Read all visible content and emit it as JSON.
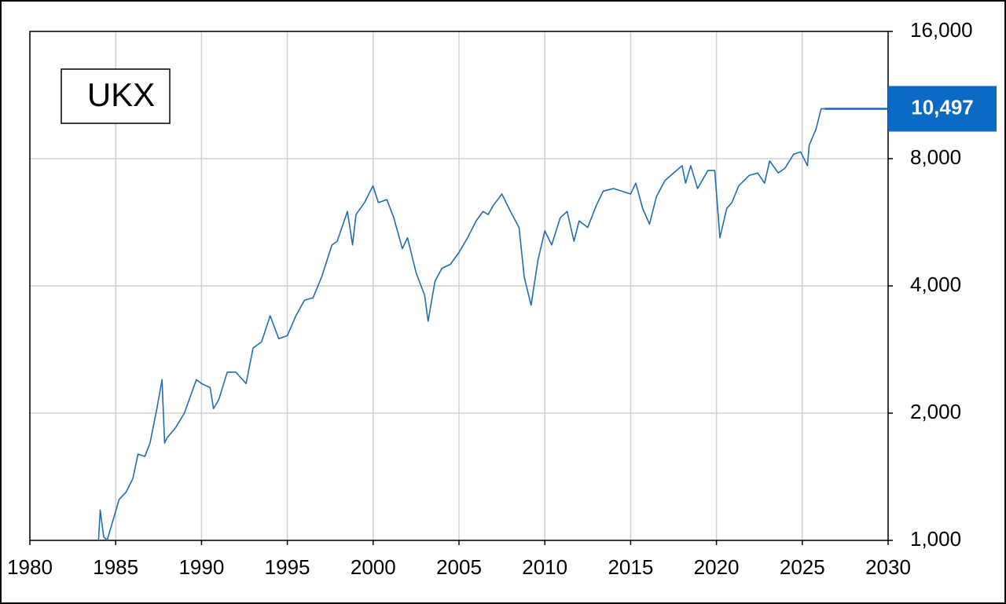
{
  "chart_data": {
    "type": "line",
    "x": [
      1984.0,
      1984.1,
      1984.3,
      1984.5,
      1984.8,
      1985.2,
      1985.6,
      1986.0,
      1986.3,
      1986.7,
      1987.0,
      1987.4,
      1987.7,
      1987.85,
      1988.0,
      1988.5,
      1989.0,
      1989.7,
      1990.0,
      1990.5,
      1990.7,
      1991.0,
      1991.5,
      1992.0,
      1992.6,
      1993.0,
      1993.5,
      1994.0,
      1994.5,
      1995.0,
      1995.5,
      1996.0,
      1996.5,
      1997.0,
      1997.6,
      1997.9,
      1998.5,
      1998.8,
      1999.0,
      1999.5,
      1999.99,
      2000.3,
      2000.8,
      2001.2,
      2001.7,
      2002.0,
      2002.5,
      2003.0,
      2003.2,
      2003.6,
      2004.0,
      2004.5,
      2005.0,
      2005.5,
      2006.0,
      2006.4,
      2006.7,
      2007.0,
      2007.5,
      2008.0,
      2008.5,
      2008.8,
      2009.2,
      2009.6,
      2010.0,
      2010.4,
      2010.9,
      2011.3,
      2011.7,
      2012.0,
      2012.5,
      2013.0,
      2013.4,
      2014.0,
      2014.5,
      2015.0,
      2015.3,
      2015.7,
      2016.1,
      2016.5,
      2017.0,
      2017.5,
      2018.0,
      2018.2,
      2018.5,
      2018.9,
      2019.5,
      2019.9,
      2020.2,
      2020.6,
      2020.9,
      2021.3,
      2021.9,
      2022.4,
      2022.8,
      2023.1,
      2023.6,
      2024.0,
      2024.5,
      2024.9,
      2025.3,
      2025.4,
      2025.8,
      2026.1,
      2026.3
    ],
    "series": [
      {
        "name": "UKX",
        "color": "#1f6db5",
        "values": [
          1000,
          1180,
          1020,
          1000,
          1100,
          1250,
          1300,
          1400,
          1600,
          1580,
          1700,
          2050,
          2400,
          1700,
          1750,
          1850,
          2000,
          2400,
          2350,
          2300,
          2050,
          2150,
          2500,
          2500,
          2350,
          2850,
          2950,
          3400,
          3000,
          3050,
          3400,
          3700,
          3750,
          4200,
          5000,
          5100,
          6000,
          5000,
          5900,
          6300,
          6900,
          6300,
          6400,
          5800,
          4900,
          5200,
          4300,
          3800,
          3300,
          4100,
          4400,
          4500,
          4800,
          5200,
          5700,
          6000,
          5900,
          6200,
          6600,
          6000,
          5500,
          4200,
          3600,
          4600,
          5400,
          5000,
          5800,
          6000,
          5100,
          5700,
          5500,
          6200,
          6700,
          6800,
          6700,
          6600,
          7000,
          6100,
          5600,
          6500,
          7100,
          7400,
          7700,
          7000,
          7700,
          6800,
          7500,
          7500,
          5200,
          6100,
          6300,
          6900,
          7300,
          7400,
          7000,
          7900,
          7400,
          7600,
          8200,
          8300,
          7700,
          8600,
          9400,
          10500,
          10497
        ]
      }
    ],
    "xlim": [
      1980,
      2030
    ],
    "xticks": [
      1980,
      1985,
      1990,
      1995,
      2000,
      2005,
      2010,
      2015,
      2020,
      2025,
      2030
    ],
    "ylim": [
      1000,
      16000
    ],
    "yticks": [
      {
        "value": 1000,
        "label": "1,000"
      },
      {
        "value": 2000,
        "label": "2,000"
      },
      {
        "value": 4000,
        "label": "4,000"
      },
      {
        "value": 8000,
        "label": "8,000"
      },
      {
        "value": 16000,
        "label": "16,000"
      }
    ],
    "y_log_scale": true,
    "grid": true,
    "y_axis_side": "right",
    "annotations": [
      {
        "value": 10497,
        "label": "10,497",
        "color": "#0a6ac4"
      }
    ]
  }
}
